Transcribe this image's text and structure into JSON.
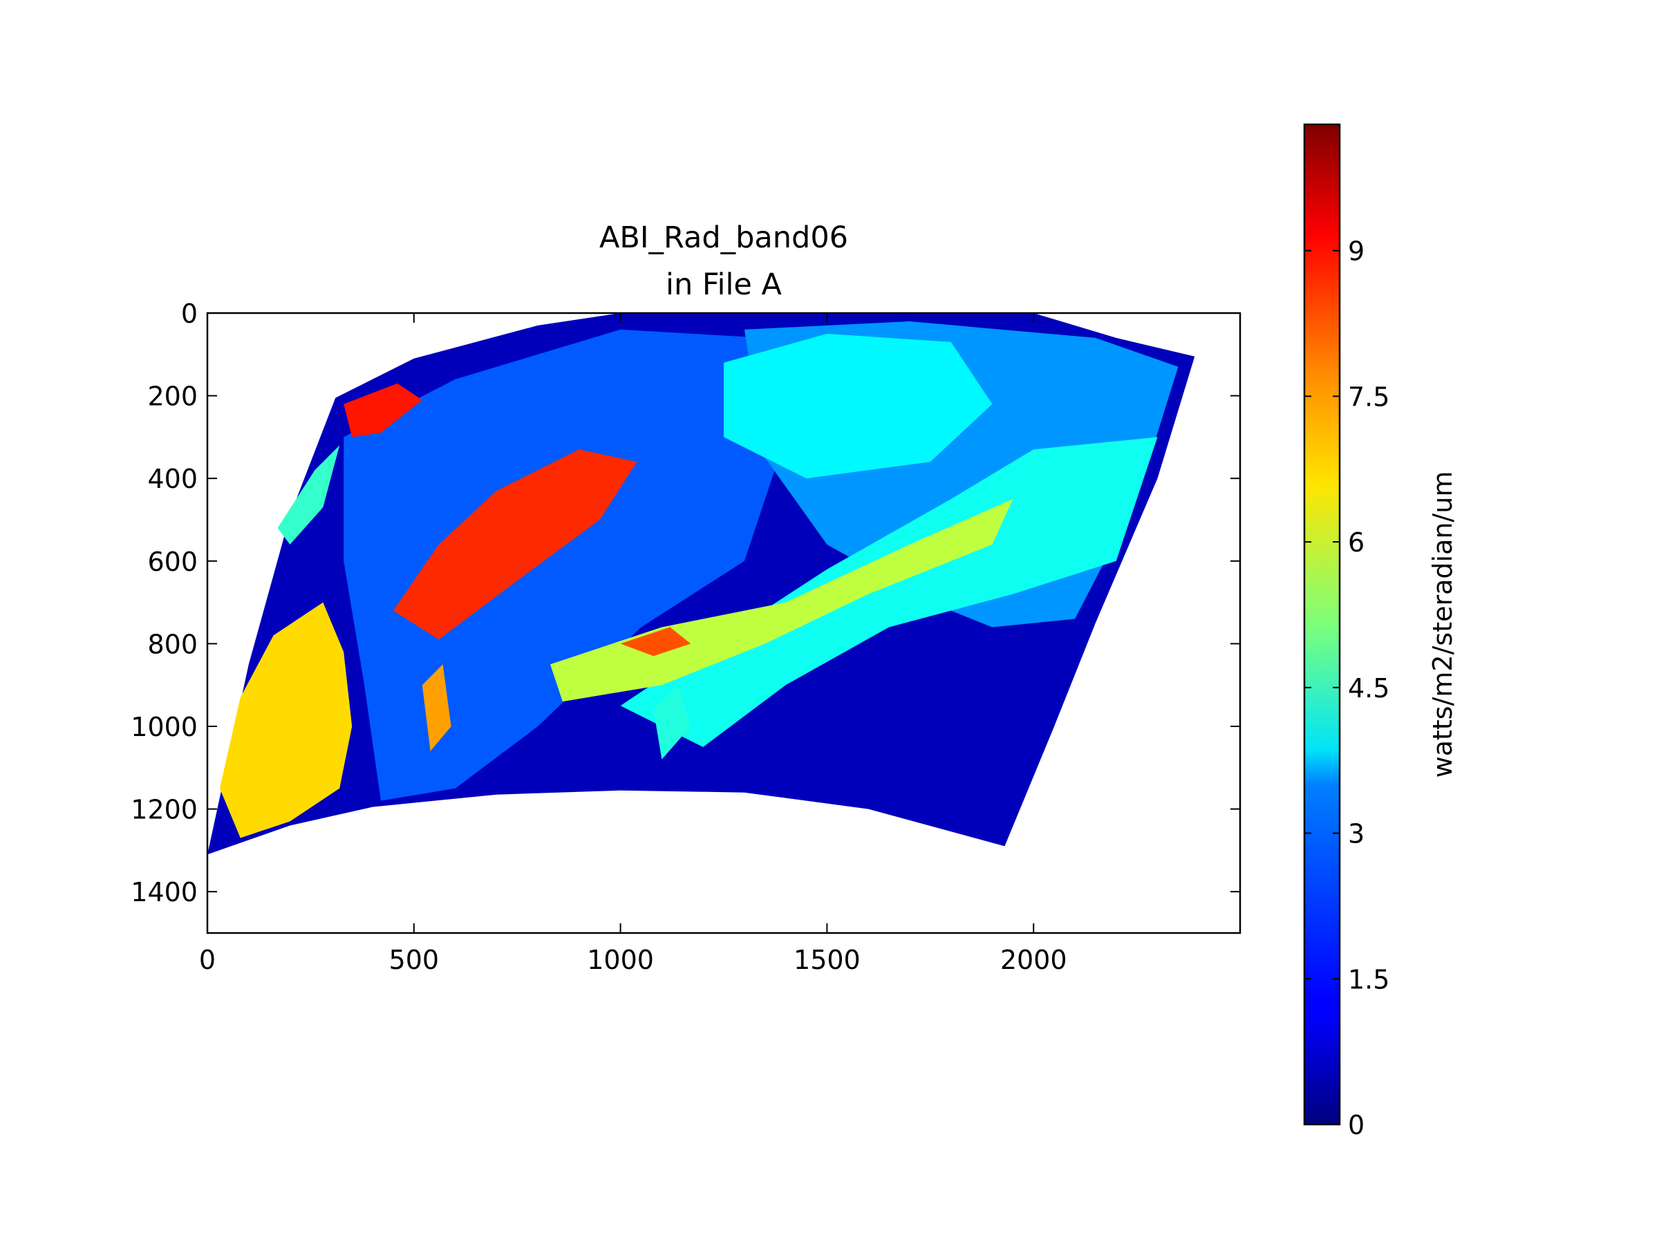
{
  "chart_data": {
    "type": "heatmap",
    "title_lines": [
      "ABI_Rad_band06",
      "in File A"
    ],
    "xlabel": "",
    "ylabel": "",
    "xlim": [
      0,
      2500
    ],
    "ylim": [
      1500,
      0
    ],
    "x_ticks": [
      0,
      500,
      1000,
      1500,
      2000
    ],
    "y_ticks": [
      0,
      200,
      400,
      600,
      800,
      1000,
      1200,
      1400
    ],
    "x_tick_labels": [
      "0",
      "500",
      "1000",
      "1500",
      "2000"
    ],
    "y_tick_labels": [
      "0",
      "200",
      "400",
      "600",
      "800",
      "1000",
      "1200",
      "1400"
    ],
    "grid": false,
    "colormap": "jet",
    "colorbar": {
      "label": "watts/m2/steradian/um",
      "range": [
        0,
        10.3
      ],
      "ticks": [
        0,
        1.5,
        3,
        4.5,
        6,
        7.5,
        9
      ],
      "tick_labels": [
        "0",
        "1.5",
        "3",
        "4.5",
        "6",
        "7.5",
        "9"
      ]
    },
    "data_region_outline": {
      "upper_edge": [
        [
          0,
          1310
        ],
        [
          100,
          850
        ],
        [
          200,
          490
        ],
        [
          310,
          205
        ],
        [
          500,
          110
        ],
        [
          800,
          30
        ],
        [
          1000,
          0
        ],
        [
          2000,
          0
        ],
        [
          2200,
          60
        ],
        [
          2390,
          105
        ]
      ],
      "right_edge": [
        [
          2390,
          105
        ],
        [
          2300,
          400
        ],
        [
          2150,
          750
        ],
        [
          2050,
          1000
        ],
        [
          1930,
          1290
        ]
      ],
      "lower_edge": [
        [
          1930,
          1290
        ],
        [
          1600,
          1200
        ],
        [
          1300,
          1160
        ],
        [
          1000,
          1155
        ],
        [
          700,
          1165
        ],
        [
          400,
          1195
        ],
        [
          200,
          1240
        ],
        [
          0,
          1310
        ]
      ]
    },
    "regions": [
      {
        "value": 0.6,
        "pts": [
          [
            0,
            1310
          ],
          [
            100,
            850
          ],
          [
            200,
            490
          ],
          [
            310,
            205
          ],
          [
            500,
            110
          ],
          [
            800,
            30
          ],
          [
            1000,
            0
          ],
          [
            2000,
            0
          ],
          [
            2200,
            60
          ],
          [
            2390,
            105
          ],
          [
            2300,
            400
          ],
          [
            2150,
            750
          ],
          [
            2050,
            1000
          ],
          [
            1930,
            1290
          ],
          [
            1600,
            1200
          ],
          [
            1300,
            1160
          ],
          [
            1000,
            1155
          ],
          [
            700,
            1165
          ],
          [
            400,
            1195
          ],
          [
            200,
            1240
          ]
        ]
      },
      {
        "value": 2.2,
        "pts": [
          [
            330,
            300
          ],
          [
            600,
            160
          ],
          [
            1000,
            40
          ],
          [
            1350,
            60
          ],
          [
            1400,
            300
          ],
          [
            1300,
            600
          ],
          [
            1050,
            760
          ],
          [
            800,
            1000
          ],
          [
            600,
            1150
          ],
          [
            420,
            1180
          ],
          [
            380,
            900
          ],
          [
            330,
            600
          ]
        ]
      },
      {
        "value": 2.8,
        "pts": [
          [
            1300,
            40
          ],
          [
            1700,
            20
          ],
          [
            2150,
            60
          ],
          [
            2350,
            130
          ],
          [
            2250,
            450
          ],
          [
            2100,
            740
          ],
          [
            1900,
            760
          ],
          [
            1750,
            700
          ],
          [
            1500,
            560
          ],
          [
            1350,
            350
          ]
        ]
      },
      {
        "value": 3.8,
        "pts": [
          [
            1250,
            120
          ],
          [
            1500,
            50
          ],
          [
            1800,
            70
          ],
          [
            1900,
            220
          ],
          [
            1750,
            360
          ],
          [
            1450,
            400
          ],
          [
            1250,
            300
          ]
        ]
      },
      {
        "value": 4.0,
        "pts": [
          [
            1300,
            750
          ],
          [
            1500,
            620
          ],
          [
            1800,
            450
          ],
          [
            2000,
            330
          ],
          [
            2300,
            300
          ],
          [
            2200,
            600
          ],
          [
            1950,
            680
          ],
          [
            1650,
            760
          ],
          [
            1400,
            900
          ],
          [
            1200,
            1050
          ],
          [
            1000,
            950
          ]
        ]
      },
      {
        "value": 5.8,
        "pts": [
          [
            830,
            850
          ],
          [
            1100,
            760
          ],
          [
            1400,
            700
          ],
          [
            1700,
            560
          ],
          [
            1950,
            450
          ],
          [
            1900,
            560
          ],
          [
            1600,
            680
          ],
          [
            1350,
            800
          ],
          [
            1100,
            900
          ],
          [
            860,
            940
          ]
        ]
      },
      {
        "value": 8.6,
        "pts": [
          [
            450,
            720
          ],
          [
            560,
            560
          ],
          [
            700,
            430
          ],
          [
            900,
            330
          ],
          [
            1040,
            360
          ],
          [
            950,
            500
          ],
          [
            760,
            640
          ],
          [
            560,
            790
          ]
        ]
      },
      {
        "value": 8.8,
        "pts": [
          [
            330,
            220
          ],
          [
            460,
            170
          ],
          [
            520,
            210
          ],
          [
            420,
            290
          ],
          [
            350,
            300
          ]
        ]
      },
      {
        "value": 8.2,
        "pts": [
          [
            1000,
            800
          ],
          [
            1120,
            760
          ],
          [
            1170,
            800
          ],
          [
            1080,
            830
          ]
        ]
      },
      {
        "value": 4.4,
        "pts": [
          [
            170,
            520
          ],
          [
            260,
            380
          ],
          [
            320,
            320
          ],
          [
            280,
            470
          ],
          [
            200,
            560
          ]
        ]
      },
      {
        "value": 6.8,
        "pts": [
          [
            30,
            1150
          ],
          [
            80,
            930
          ],
          [
            160,
            780
          ],
          [
            280,
            700
          ],
          [
            330,
            820
          ],
          [
            350,
            1000
          ],
          [
            320,
            1150
          ],
          [
            200,
            1230
          ],
          [
            80,
            1270
          ]
        ]
      },
      {
        "value": 7.4,
        "pts": [
          [
            520,
            900
          ],
          [
            570,
            850
          ],
          [
            590,
            1000
          ],
          [
            540,
            1060
          ]
        ]
      },
      {
        "value": 4.2,
        "pts": [
          [
            1080,
            960
          ],
          [
            1140,
            900
          ],
          [
            1170,
            1000
          ],
          [
            1100,
            1080
          ]
        ]
      }
    ]
  }
}
